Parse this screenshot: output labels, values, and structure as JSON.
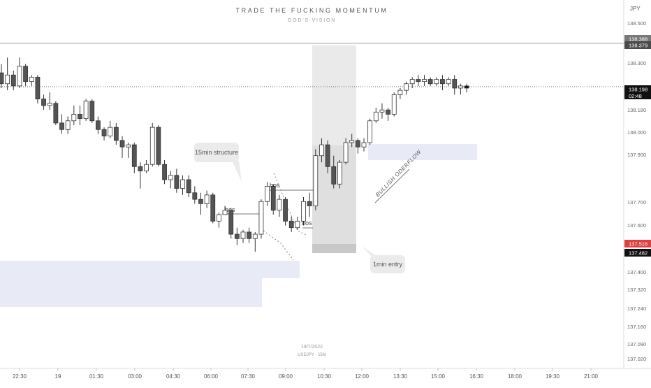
{
  "header": {
    "title": "TRADE THE FUCKING MOMENTUM",
    "subtitle": "GOD'S VISION"
  },
  "watermark": {
    "date": "19/7/2022",
    "symbol": "USDJPY · 15M"
  },
  "currency": "JPY",
  "colors": {
    "up": "#ffffff",
    "down": "#555555",
    "wick": "#333333",
    "zone": "#e8ebf5",
    "highlight": "#d6d6d6",
    "current_price": "#111111",
    "alert_price": "#e0403f"
  },
  "chart_data": {
    "type": "candlestick",
    "symbol": "USDJPY",
    "timeframe": "15M",
    "ylim": [
      137.0,
      138.55
    ],
    "y_ticks": [
      "138.500",
      "138.300",
      "138.180",
      "138.000",
      "137.900",
      "137.700",
      "137.600",
      "137.400",
      "137.320",
      "137.240",
      "137.160",
      "137.090",
      "137.020"
    ],
    "x_ticks": [
      "22:30",
      "19",
      "01:30",
      "03:00",
      "04:30",
      "06:00",
      "07:30",
      "09:00",
      "10:30",
      "12:00",
      "13:30",
      "15:00",
      "16:30",
      "18:00",
      "19:30",
      "21:00"
    ],
    "candles": [
      {
        "t": "21:45",
        "o": 138.26,
        "h": 138.3,
        "l": 138.19,
        "c": 138.21
      },
      {
        "t": "22:00",
        "o": 138.21,
        "h": 138.33,
        "l": 138.18,
        "c": 138.25
      },
      {
        "t": "22:15",
        "o": 138.25,
        "h": 138.27,
        "l": 138.18,
        "c": 138.2
      },
      {
        "t": "22:30",
        "o": 138.2,
        "h": 138.33,
        "l": 138.19,
        "c": 138.29
      },
      {
        "t": "22:45",
        "o": 138.29,
        "h": 138.3,
        "l": 138.2,
        "c": 138.22
      },
      {
        "t": "23:00",
        "o": 138.22,
        "h": 138.25,
        "l": 138.2,
        "c": 138.24
      },
      {
        "t": "23:15",
        "o": 138.24,
        "h": 138.25,
        "l": 138.12,
        "c": 138.14
      },
      {
        "t": "23:30",
        "o": 138.14,
        "h": 138.16,
        "l": 138.09,
        "c": 138.11
      },
      {
        "t": "23:45",
        "o": 138.11,
        "h": 138.17,
        "l": 138.09,
        "c": 138.12
      },
      {
        "t": "00:00",
        "o": 138.12,
        "h": 138.13,
        "l": 138.02,
        "c": 138.03
      },
      {
        "t": "00:15",
        "o": 138.03,
        "h": 138.07,
        "l": 137.98,
        "c": 138.0
      },
      {
        "t": "00:30",
        "o": 138.0,
        "h": 138.06,
        "l": 137.98,
        "c": 138.04
      },
      {
        "t": "00:45",
        "o": 138.04,
        "h": 138.11,
        "l": 138.02,
        "c": 138.07
      },
      {
        "t": "01:00",
        "o": 138.07,
        "h": 138.11,
        "l": 138.02,
        "c": 138.05
      },
      {
        "t": "01:15",
        "o": 138.05,
        "h": 138.14,
        "l": 138.04,
        "c": 138.13
      },
      {
        "t": "01:30",
        "o": 138.13,
        "h": 138.14,
        "l": 138.03,
        "c": 138.04
      },
      {
        "t": "01:45",
        "o": 138.04,
        "h": 138.06,
        "l": 137.98,
        "c": 138.0
      },
      {
        "t": "02:00",
        "o": 138.0,
        "h": 138.01,
        "l": 137.95,
        "c": 137.97
      },
      {
        "t": "02:15",
        "o": 137.97,
        "h": 138.04,
        "l": 137.96,
        "c": 138.01
      },
      {
        "t": "02:30",
        "o": 138.01,
        "h": 138.03,
        "l": 137.93,
        "c": 137.95
      },
      {
        "t": "02:45",
        "o": 137.95,
        "h": 137.97,
        "l": 137.87,
        "c": 137.92
      },
      {
        "t": "03:00",
        "o": 137.92,
        "h": 137.94,
        "l": 137.87,
        "c": 137.93
      },
      {
        "t": "03:15",
        "o": 137.93,
        "h": 137.94,
        "l": 137.8,
        "c": 137.83
      },
      {
        "t": "03:30",
        "o": 137.83,
        "h": 137.85,
        "l": 137.73,
        "c": 137.81
      },
      {
        "t": "03:45",
        "o": 137.81,
        "h": 137.86,
        "l": 137.8,
        "c": 137.84
      },
      {
        "t": "04:00",
        "o": 137.84,
        "h": 138.03,
        "l": 137.83,
        "c": 138.01
      },
      {
        "t": "04:15",
        "o": 138.01,
        "h": 138.02,
        "l": 137.83,
        "c": 137.84
      },
      {
        "t": "04:30",
        "o": 137.84,
        "h": 137.86,
        "l": 137.75,
        "c": 137.77
      },
      {
        "t": "04:45",
        "o": 137.77,
        "h": 137.81,
        "l": 137.73,
        "c": 137.79
      },
      {
        "t": "05:00",
        "o": 137.79,
        "h": 137.82,
        "l": 137.71,
        "c": 137.73
      },
      {
        "t": "05:15",
        "o": 137.73,
        "h": 137.79,
        "l": 137.7,
        "c": 137.77
      },
      {
        "t": "05:30",
        "o": 137.77,
        "h": 137.79,
        "l": 137.69,
        "c": 137.71
      },
      {
        "t": "05:45",
        "o": 137.71,
        "h": 137.74,
        "l": 137.66,
        "c": 137.68
      },
      {
        "t": "06:00",
        "o": 137.68,
        "h": 137.71,
        "l": 137.61,
        "c": 137.66
      },
      {
        "t": "06:15",
        "o": 137.66,
        "h": 137.72,
        "l": 137.64,
        "c": 137.7
      },
      {
        "t": "06:30",
        "o": 137.7,
        "h": 137.71,
        "l": 137.57,
        "c": 137.58
      },
      {
        "t": "06:45",
        "o": 137.58,
        "h": 137.62,
        "l": 137.55,
        "c": 137.61
      },
      {
        "t": "07:00",
        "o": 137.61,
        "h": 137.65,
        "l": 137.61,
        "c": 137.63
      },
      {
        "t": "07:15",
        "o": 137.63,
        "h": 137.64,
        "l": 137.5,
        "c": 137.52
      },
      {
        "t": "07:30",
        "o": 137.52,
        "h": 137.55,
        "l": 137.47,
        "c": 137.5
      },
      {
        "t": "07:45",
        "o": 137.5,
        "h": 137.54,
        "l": 137.48,
        "c": 137.53
      },
      {
        "t": "08:00",
        "o": 137.53,
        "h": 137.55,
        "l": 137.48,
        "c": 137.5
      },
      {
        "t": "08:15",
        "o": 137.5,
        "h": 137.53,
        "l": 137.44,
        "c": 137.52
      },
      {
        "t": "08:30",
        "o": 137.52,
        "h": 137.68,
        "l": 137.5,
        "c": 137.67
      },
      {
        "t": "08:45",
        "o": 137.67,
        "h": 137.76,
        "l": 137.65,
        "c": 137.74
      },
      {
        "t": "09:00",
        "o": 137.74,
        "h": 137.75,
        "l": 137.61,
        "c": 137.63
      },
      {
        "t": "09:15",
        "o": 137.63,
        "h": 137.7,
        "l": 137.6,
        "c": 137.68
      },
      {
        "t": "09:30",
        "o": 137.68,
        "h": 137.69,
        "l": 137.56,
        "c": 137.58
      },
      {
        "t": "09:45",
        "o": 137.58,
        "h": 137.6,
        "l": 137.53,
        "c": 137.55
      },
      {
        "t": "10:00",
        "o": 137.55,
        "h": 137.6,
        "l": 137.54,
        "c": 137.58
      },
      {
        "t": "10:15",
        "o": 137.58,
        "h": 137.69,
        "l": 137.56,
        "c": 137.67
      },
      {
        "t": "10:30",
        "o": 137.67,
        "h": 137.71,
        "l": 137.6,
        "c": 137.65
      },
      {
        "t": "10:45",
        "o": 137.65,
        "h": 137.91,
        "l": 137.63,
        "c": 137.88
      },
      {
        "t": "11:00",
        "o": 137.88,
        "h": 137.96,
        "l": 137.85,
        "c": 137.93
      },
      {
        "t": "11:15",
        "o": 137.93,
        "h": 137.95,
        "l": 137.8,
        "c": 137.83
      },
      {
        "t": "11:30",
        "o": 137.83,
        "h": 137.88,
        "l": 137.73,
        "c": 137.75
      },
      {
        "t": "11:45",
        "o": 137.75,
        "h": 137.86,
        "l": 137.73,
        "c": 137.85
      },
      {
        "t": "12:00",
        "o": 137.85,
        "h": 137.96,
        "l": 137.84,
        "c": 137.94
      },
      {
        "t": "12:15",
        "o": 137.94,
        "h": 137.98,
        "l": 137.92,
        "c": 137.95
      },
      {
        "t": "12:30",
        "o": 137.95,
        "h": 137.96,
        "l": 137.89,
        "c": 137.92
      },
      {
        "t": "12:45",
        "o": 137.92,
        "h": 137.96,
        "l": 137.9,
        "c": 137.94
      },
      {
        "t": "13:00",
        "o": 137.94,
        "h": 138.05,
        "l": 137.93,
        "c": 138.04
      },
      {
        "t": "13:15",
        "o": 138.04,
        "h": 138.1,
        "l": 138.03,
        "c": 138.08
      },
      {
        "t": "13:30",
        "o": 138.08,
        "h": 138.12,
        "l": 138.05,
        "c": 138.09
      },
      {
        "t": "13:45",
        "o": 138.09,
        "h": 138.1,
        "l": 138.04,
        "c": 138.07
      },
      {
        "t": "14:00",
        "o": 138.07,
        "h": 138.17,
        "l": 138.06,
        "c": 138.16
      },
      {
        "t": "14:15",
        "o": 138.16,
        "h": 138.19,
        "l": 138.14,
        "c": 138.18
      },
      {
        "t": "14:30",
        "o": 138.18,
        "h": 138.22,
        "l": 138.16,
        "c": 138.21
      },
      {
        "t": "14:45",
        "o": 138.21,
        "h": 138.24,
        "l": 138.19,
        "c": 138.23
      },
      {
        "t": "15:00",
        "o": 138.23,
        "h": 138.25,
        "l": 138.2,
        "c": 138.22
      },
      {
        "t": "15:15",
        "o": 138.22,
        "h": 138.25,
        "l": 138.2,
        "c": 138.23
      },
      {
        "t": "15:30",
        "o": 138.23,
        "h": 138.24,
        "l": 138.2,
        "c": 138.21
      },
      {
        "t": "15:45",
        "o": 138.21,
        "h": 138.24,
        "l": 138.2,
        "c": 138.23
      },
      {
        "t": "16:00",
        "o": 138.23,
        "h": 138.25,
        "l": 138.18,
        "c": 138.21
      },
      {
        "t": "16:15",
        "o": 138.21,
        "h": 138.24,
        "l": 138.2,
        "c": 138.23
      },
      {
        "t": "16:30",
        "o": 138.23,
        "h": 138.25,
        "l": 138.16,
        "c": 138.19
      },
      {
        "t": "16:45",
        "o": 138.19,
        "h": 138.21,
        "l": 138.16,
        "c": 138.2
      },
      {
        "t": "17:00",
        "o": 138.2,
        "h": 138.21,
        "l": 138.17,
        "c": 138.19
      }
    ],
    "price_labels": [
      {
        "text": "138.388",
        "bg": "#787878",
        "price": 138.388
      },
      {
        "text": "138.379",
        "bg": "#4a4a4a",
        "price": 138.379
      },
      {
        "text": "138.198",
        "sub": "02:48",
        "bg": "#111111",
        "price": 138.198
      },
      {
        "text": "137.516",
        "bg": "#e0403f",
        "price": 137.516
      },
      {
        "text": "137.482",
        "bg": "#111111",
        "price": 137.482
      }
    ],
    "annotations": {
      "bos_labels": [
        "bos",
        "bos",
        "bos"
      ],
      "callout_15min": "15min structure",
      "callout_1min": "1min entry",
      "diagonal_label": "BULLISH ODERFLOW"
    }
  }
}
